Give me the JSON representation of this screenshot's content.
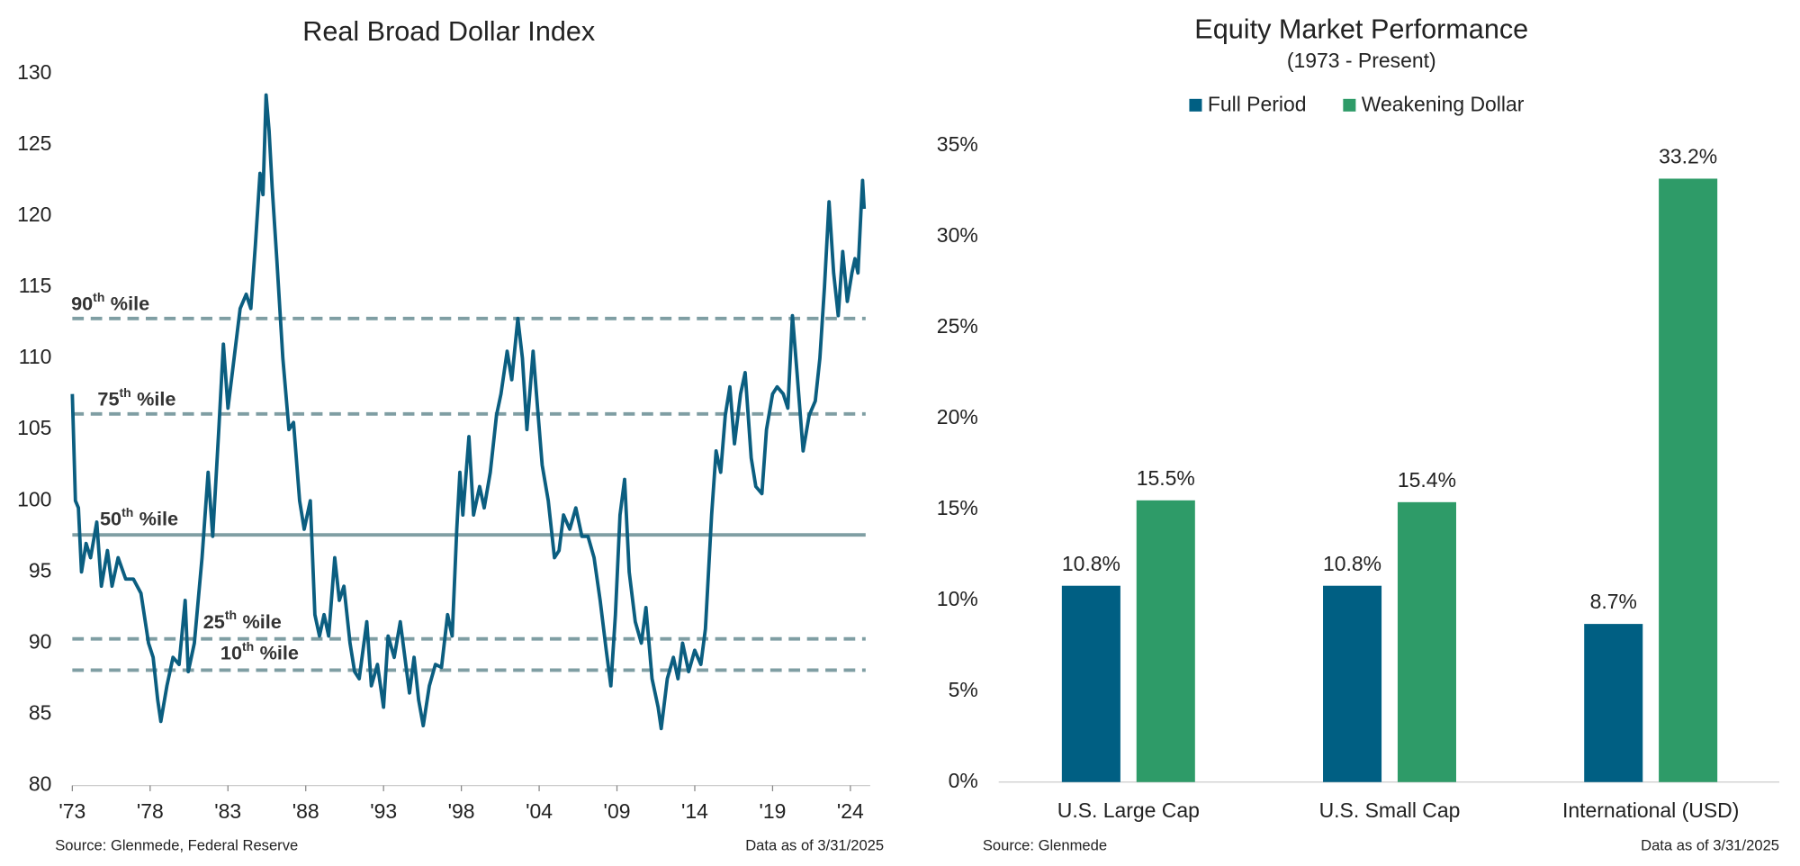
{
  "chart_data": [
    {
      "type": "line",
      "title": "Real Broad Dollar Index",
      "color": "#0b5e80",
      "x": [
        1973.0,
        1973.2,
        1973.4,
        1973.6,
        1973.9,
        1974.2,
        1974.6,
        1974.9,
        1975.3,
        1975.6,
        1976.0,
        1976.5,
        1977.0,
        1977.5,
        1978.0,
        1978.3,
        1978.6,
        1978.8,
        1979.2,
        1979.6,
        1980.0,
        1980.4,
        1980.6,
        1981.0,
        1981.5,
        1981.9,
        1982.2,
        1982.6,
        1982.9,
        1983.2,
        1983.6,
        1984.0,
        1984.4,
        1984.7,
        1985.0,
        1985.3,
        1985.5,
        1985.7,
        1985.9,
        1986.1,
        1986.4,
        1986.8,
        1987.2,
        1987.5,
        1987.9,
        1988.2,
        1988.6,
        1988.9,
        1989.2,
        1989.5,
        1989.8,
        1990.2,
        1990.5,
        1990.8,
        1991.2,
        1991.5,
        1991.8,
        1992.3,
        1992.6,
        1993.0,
        1993.4,
        1993.7,
        1994.1,
        1994.5,
        1994.8,
        1995.1,
        1995.4,
        1995.7,
        1996.0,
        1996.4,
        1996.8,
        1997.2,
        1997.6,
        1997.9,
        1998.2,
        1998.4,
        1998.6,
        1999.0,
        1999.3,
        1999.7,
        2000.0,
        2000.4,
        2000.8,
        2001.1,
        2001.5,
        2001.8,
        2002.2,
        2002.5,
        2002.8,
        2003.2,
        2003.5,
        2003.8,
        2004.2,
        2004.6,
        2004.9,
        2005.2,
        2005.6,
        2006.0,
        2006.4,
        2006.8,
        2007.2,
        2007.6,
        2008.0,
        2008.3,
        2008.6,
        2008.9,
        2009.2,
        2009.5,
        2009.9,
        2010.3,
        2010.6,
        2011.0,
        2011.4,
        2011.6,
        2012.0,
        2012.4,
        2012.7,
        2013.0,
        2013.4,
        2013.8,
        2014.2,
        2014.5,
        2014.9,
        2015.2,
        2015.5,
        2015.8,
        2016.1,
        2016.4,
        2016.8,
        2017.1,
        2017.5,
        2017.8,
        2018.2,
        2018.5,
        2018.9,
        2019.2,
        2019.6,
        2019.9,
        2020.2,
        2020.5,
        2020.9,
        2021.3,
        2021.7,
        2022.0,
        2022.3,
        2022.6,
        2022.9,
        2023.2,
        2023.5,
        2023.8,
        2024.1,
        2024.3,
        2024.5,
        2024.7,
        2024.8,
        2024.9
      ],
      "values": [
        107.5,
        100,
        99.5,
        95,
        97,
        96,
        98.5,
        94,
        96.5,
        94,
        96,
        94.5,
        94.5,
        93.5,
        90,
        89,
        86,
        84.5,
        87,
        89,
        88.5,
        93,
        88,
        90,
        96,
        102,
        97.5,
        105,
        111,
        106.5,
        110,
        113.5,
        114.5,
        113.5,
        118,
        123,
        121.5,
        128.5,
        126,
        122,
        117,
        110,
        105,
        105.5,
        100,
        98,
        100,
        92,
        90.5,
        92,
        90.5,
        96,
        93,
        94,
        90,
        88,
        87.5,
        91.5,
        87,
        88.5,
        85.5,
        90.5,
        89,
        91.5,
        89,
        86.5,
        89,
        86,
        84.2,
        87,
        88.5,
        88.3,
        92,
        90.5,
        98,
        102,
        99,
        104.5,
        99,
        101,
        99.5,
        102,
        106,
        107.5,
        110.5,
        108.5,
        112.8,
        110,
        105,
        110.5,
        106.5,
        102.5,
        100,
        96,
        96.5,
        99,
        98,
        99.5,
        97.5,
        97.5,
        96,
        93,
        89.5,
        87,
        92,
        99,
        101.5,
        95,
        91.5,
        90,
        92.5,
        87.5,
        85.5,
        84,
        87.5,
        89,
        87.5,
        90,
        88,
        89.5,
        88.5,
        91,
        99,
        103.5,
        102,
        106,
        108,
        104,
        107.5,
        109,
        103,
        101,
        100.5,
        105,
        107.5,
        108,
        107.5,
        106.5,
        113,
        109,
        103.5,
        106,
        107,
        110,
        115,
        121,
        116,
        113,
        117.5,
        114,
        116,
        117,
        116,
        120.5,
        122.5,
        120.5
      ],
      "xlim": [
        1973,
        2025.3
      ],
      "xticks": [
        {
          "value": 1973,
          "label": "'73"
        },
        {
          "value": 1978.1,
          "label": "'78"
        },
        {
          "value": 1983.2,
          "label": "'83"
        },
        {
          "value": 1988.3,
          "label": "'88"
        },
        {
          "value": 1993.4,
          "label": "'93"
        },
        {
          "value": 1998.5,
          "label": "'98"
        },
        {
          "value": 2003.6,
          "label": "'04"
        },
        {
          "value": 2008.7,
          "label": "'09"
        },
        {
          "value": 2013.8,
          "label": "'14"
        },
        {
          "value": 2018.9,
          "label": "'19"
        },
        {
          "value": 2024.0,
          "label": "'24"
        }
      ],
      "ylim": [
        80,
        130
      ],
      "yticks": [
        80,
        85,
        90,
        95,
        100,
        105,
        110,
        115,
        120,
        125,
        130
      ],
      "reference_lines": [
        {
          "rank": "90",
          "suffix": "th",
          "text": "%ile",
          "value": 112.8,
          "style": "dashed"
        },
        {
          "rank": "75",
          "suffix": "th",
          "text": "%ile",
          "value": 106.1,
          "style": "dashed"
        },
        {
          "rank": "50",
          "suffix": "th",
          "text": "%ile",
          "value": 97.6,
          "style": "solid"
        },
        {
          "rank": "25",
          "suffix": "th",
          "text": "%ile",
          "value": 90.3,
          "style": "dashed"
        },
        {
          "rank": "10",
          "suffix": "th",
          "text": "%ile",
          "value": 88.1,
          "style": "dashed"
        }
      ],
      "reference_color": "#7f9ea3",
      "source": "Source: Glenmede, Federal Reserve",
      "note": "Data as of 3/31/2025"
    },
    {
      "type": "bar",
      "title": "Equity Market Performance",
      "subtitle": "(1973 - Present)",
      "categories": [
        "U.S. Large Cap",
        "U.S. Small Cap",
        "International (USD)"
      ],
      "series": [
        {
          "name": "Full Period",
          "color": "#005f83",
          "values": [
            10.8,
            10.8,
            8.7
          ],
          "value_labels": [
            "10.8%",
            "10.8%",
            "8.7%"
          ]
        },
        {
          "name": "Weakening Dollar",
          "color": "#2e9b68",
          "values": [
            15.5,
            15.4,
            33.2
          ],
          "value_labels": [
            "15.5%",
            "15.4%",
            "33.2%"
          ]
        }
      ],
      "ylim": [
        0,
        35
      ],
      "yticks": [
        {
          "value": 0,
          "label": "0%"
        },
        {
          "value": 5,
          "label": "5%"
        },
        {
          "value": 10,
          "label": "10%"
        },
        {
          "value": 15,
          "label": "15%"
        },
        {
          "value": 20,
          "label": "20%"
        },
        {
          "value": 25,
          "label": "25%"
        },
        {
          "value": 30,
          "label": "30%"
        },
        {
          "value": 35,
          "label": "35%"
        }
      ],
      "legend": "top",
      "source": "Source: Glenmede",
      "note": "Data as of 3/31/2025"
    }
  ]
}
